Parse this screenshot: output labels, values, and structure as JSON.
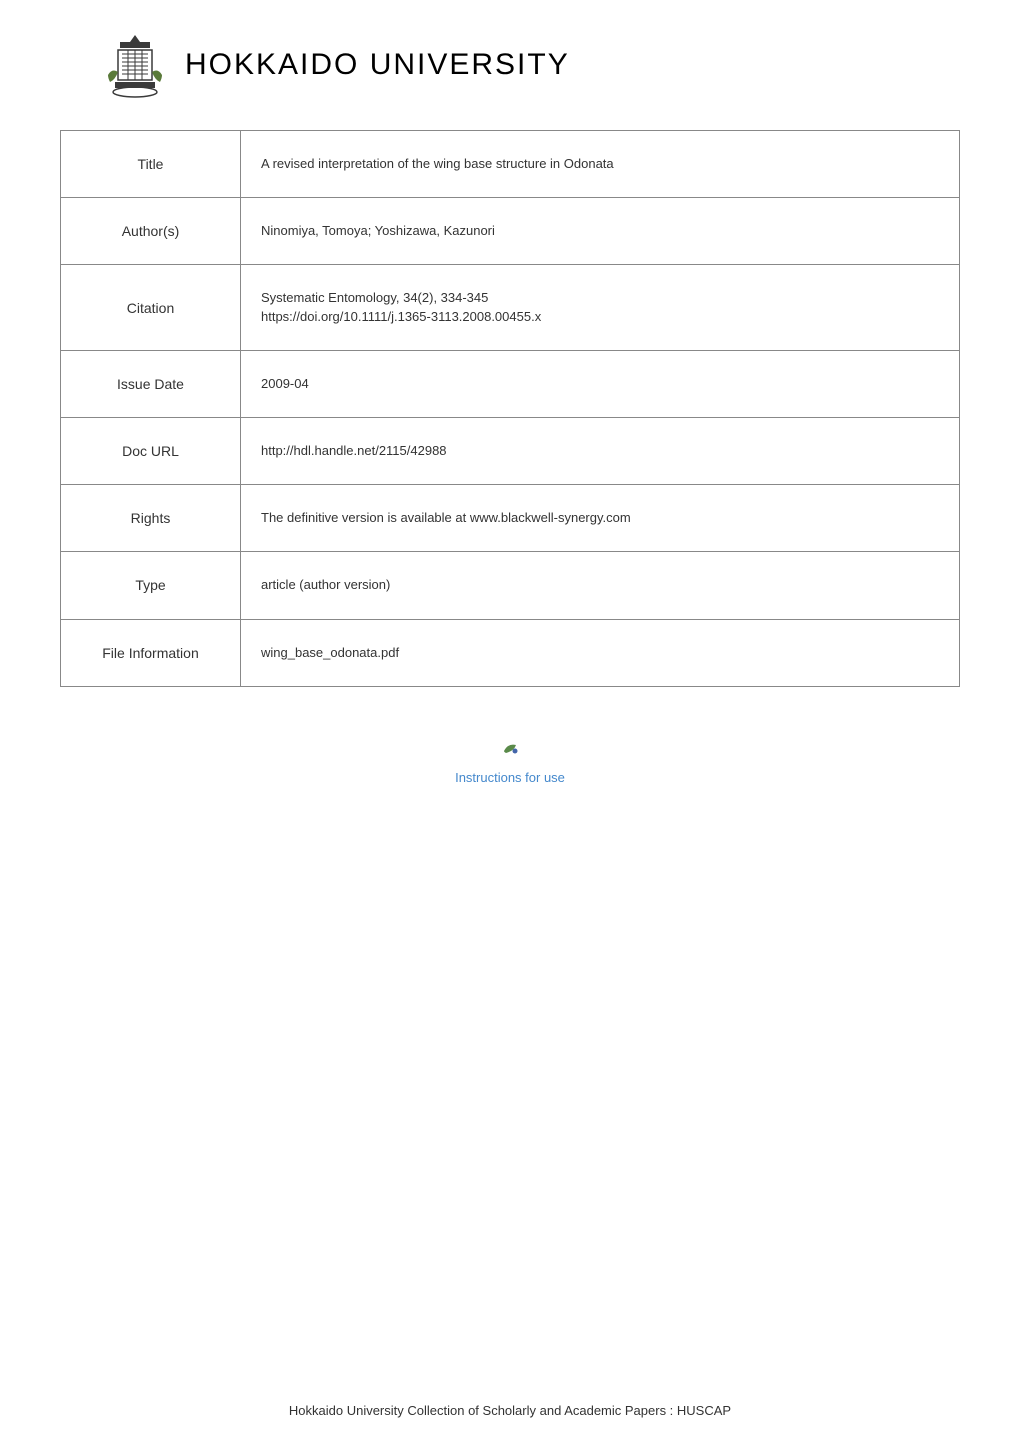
{
  "header": {
    "university_name": "HOKKAIDO UNIVERSITY"
  },
  "metadata": {
    "rows": [
      {
        "label": "Title",
        "value": "A revised interpretation of the wing base structure in Odonata"
      },
      {
        "label": "Author(s)",
        "value": "Ninomiya, Tomoya; Yoshizawa, Kazunori"
      },
      {
        "label": "Citation",
        "value": "Systematic Entomology, 34(2), 334-345\nhttps://doi.org/10.1111/j.1365-3113.2008.00455.x"
      },
      {
        "label": "Issue Date",
        "value": "2009-04"
      },
      {
        "label": "Doc URL",
        "value": "http://hdl.handle.net/2115/42988"
      },
      {
        "label": "Rights",
        "value": "The definitive version is available at www.blackwell-synergy.com"
      },
      {
        "label": "Type",
        "value": "article (author version)"
      },
      {
        "label": "File Information",
        "value": "wing_base_odonata.pdf"
      }
    ]
  },
  "instructions": {
    "link_text": "Instructions for use"
  },
  "footer": {
    "text": "Hokkaido University Collection of Scholarly and Academic Papers : HUSCAP"
  },
  "colors": {
    "background": "#ffffff",
    "table_border": "#888888",
    "text": "#333333",
    "link": "#4488cc",
    "logo_green": "#5a7a3a",
    "logo_dark": "#3a3a3a"
  }
}
